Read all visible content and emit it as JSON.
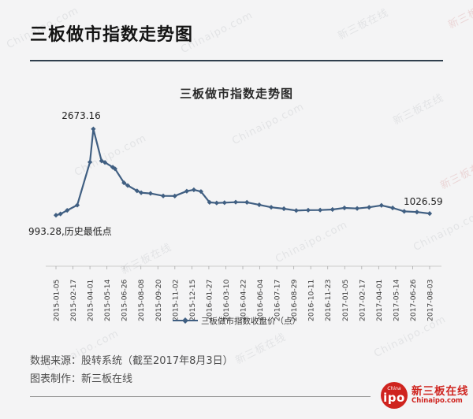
{
  "page": {
    "title": "三板做市指数走势图",
    "source_line": "数据来源：股转系统（截至2017年8月3日）",
    "credit_line": "图表制作：新三板在线"
  },
  "watermark": {
    "text_cn": "新三板在线",
    "text_en": "Chinaipo.com"
  },
  "logo": {
    "badge_top": "China",
    "badge_main": "ipo",
    "name": "新三板在线",
    "domain": "Chinaipo.com",
    "color": "#cf241f"
  },
  "chart_data": {
    "type": "line",
    "title": "三板做市指数走势图",
    "legend": "三板做市指数收盘价（点）",
    "line_color": "#405f82",
    "ylim": [
      0,
      2900
    ],
    "grid": false,
    "legend_position": "bottom-center",
    "annotations": {
      "peak": "2673.16",
      "low": "993.28,历史最低点",
      "last": "1026.59"
    },
    "x_tick_labels": [
      "2015-01-05",
      "2015-02-17",
      "2015-04-01",
      "2015-05-14",
      "2015-06-26",
      "2015-08-08",
      "2015-09-20",
      "2015-11-02",
      "2015-12-15",
      "2016-01-27",
      "2016-03-10",
      "2016-04-22",
      "2016-06-04",
      "2016-07-17",
      "2016-08-29",
      "2016-10-11",
      "2016-11-23",
      "2017-01-05",
      "2017-02-17",
      "2017-04-01",
      "2017-05-14",
      "2017-06-26",
      "2017-08-03"
    ],
    "series": [
      {
        "name": "三板做市指数收盘价（点）",
        "points": [
          {
            "x": 0.0,
            "v": 993.28
          },
          {
            "x": 0.012,
            "v": 1018
          },
          {
            "x": 0.03,
            "v": 1088
          },
          {
            "x": 0.057,
            "v": 1190
          },
          {
            "x": 0.091,
            "v": 2028
          },
          {
            "x": 0.1,
            "v": 2673.16
          },
          {
            "x": 0.122,
            "v": 2052
          },
          {
            "x": 0.131,
            "v": 2022
          },
          {
            "x": 0.152,
            "v": 1928
          },
          {
            "x": 0.158,
            "v": 1898
          },
          {
            "x": 0.182,
            "v": 1625
          },
          {
            "x": 0.192,
            "v": 1572
          },
          {
            "x": 0.217,
            "v": 1468
          },
          {
            "x": 0.228,
            "v": 1432
          },
          {
            "x": 0.253,
            "v": 1418
          },
          {
            "x": 0.287,
            "v": 1370
          },
          {
            "x": 0.318,
            "v": 1368
          },
          {
            "x": 0.35,
            "v": 1462
          },
          {
            "x": 0.369,
            "v": 1488
          },
          {
            "x": 0.388,
            "v": 1455
          },
          {
            "x": 0.411,
            "v": 1245
          },
          {
            "x": 0.43,
            "v": 1232
          },
          {
            "x": 0.451,
            "v": 1238
          },
          {
            "x": 0.481,
            "v": 1248
          },
          {
            "x": 0.511,
            "v": 1245
          },
          {
            "x": 0.544,
            "v": 1196
          },
          {
            "x": 0.576,
            "v": 1148
          },
          {
            "x": 0.61,
            "v": 1120
          },
          {
            "x": 0.643,
            "v": 1085
          },
          {
            "x": 0.675,
            "v": 1092
          },
          {
            "x": 0.707,
            "v": 1094
          },
          {
            "x": 0.74,
            "v": 1105
          },
          {
            "x": 0.772,
            "v": 1136
          },
          {
            "x": 0.806,
            "v": 1125
          },
          {
            "x": 0.838,
            "v": 1147
          },
          {
            "x": 0.871,
            "v": 1185
          },
          {
            "x": 0.901,
            "v": 1136
          },
          {
            "x": 0.932,
            "v": 1068
          },
          {
            "x": 0.966,
            "v": 1055
          },
          {
            "x": 1.0,
            "v": 1026.59
          }
        ]
      }
    ]
  }
}
